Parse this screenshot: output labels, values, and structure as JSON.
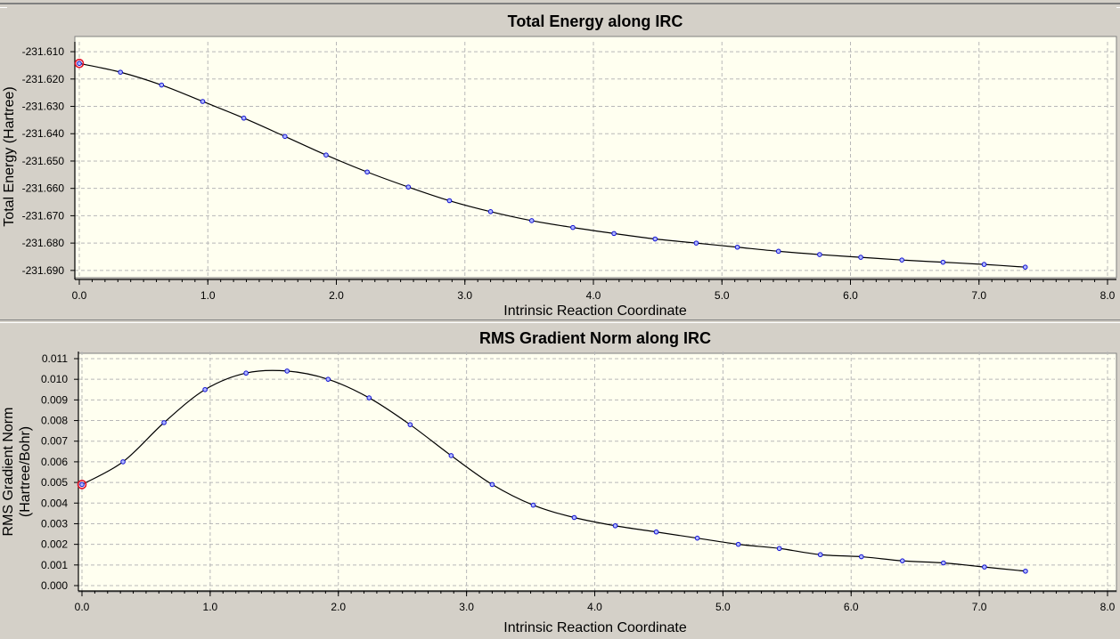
{
  "chart_data": [
    {
      "type": "line",
      "title": "Total Energy along IRC",
      "xlabel": "Intrinsic Reaction Coordinate",
      "ylabel": "Total Energy (Hartree)",
      "xlim": [
        0.0,
        8.0
      ],
      "ylim": [
        -231.692,
        -231.609
      ],
      "x_ticks": [
        "0.0",
        "1.0",
        "2.0",
        "3.0",
        "4.0",
        "5.0",
        "6.0",
        "7.0",
        "8.0"
      ],
      "y_ticks": [
        "-231.610",
        "-231.620",
        "-231.630",
        "-231.640",
        "-231.650",
        "-231.660",
        "-231.670",
        "-231.680",
        "-231.690"
      ],
      "grid": true,
      "selected_point_index": 0,
      "x": [
        0.0,
        0.32,
        0.64,
        0.96,
        1.28,
        1.6,
        1.92,
        2.24,
        2.56,
        2.88,
        3.2,
        3.52,
        3.84,
        4.16,
        4.48,
        4.8,
        5.12,
        5.44,
        5.76,
        6.08,
        6.4,
        6.72,
        7.04,
        7.36
      ],
      "series": [
        {
          "values": [
            -231.6143,
            -231.6175,
            -231.6222,
            -231.6282,
            -231.6343,
            -231.641,
            -231.6478,
            -231.654,
            -231.6595,
            -231.6645,
            -231.6685,
            -231.6718,
            -231.6743,
            -231.6765,
            -231.6785,
            -231.68,
            -231.6815,
            -231.683,
            -231.6842,
            -231.6852,
            -231.6862,
            -231.687,
            -231.6878,
            -231.6888
          ]
        }
      ]
    },
    {
      "type": "line",
      "title": "RMS Gradient Norm along IRC",
      "xlabel": "Intrinsic Reaction Coordinate",
      "ylabel": [
        "RMS Gradient Norm",
        "(Hartree/Bohr)"
      ],
      "xlim": [
        0.0,
        8.0
      ],
      "ylim": [
        0.0,
        0.011
      ],
      "x_ticks": [
        "0.0",
        "1.0",
        "2.0",
        "3.0",
        "4.0",
        "5.0",
        "6.0",
        "7.0",
        "8.0"
      ],
      "y_ticks": [
        "0.000",
        "0.001",
        "0.002",
        "0.003",
        "0.004",
        "0.005",
        "0.006",
        "0.007",
        "0.008",
        "0.009",
        "0.010",
        "0.011"
      ],
      "grid": true,
      "selected_point_index": 0,
      "x": [
        0.0,
        0.32,
        0.64,
        0.96,
        1.28,
        1.6,
        1.92,
        2.24,
        2.56,
        2.88,
        3.2,
        3.52,
        3.84,
        4.16,
        4.48,
        4.8,
        5.12,
        5.44,
        5.76,
        6.08,
        6.4,
        6.72,
        7.04,
        7.36
      ],
      "series": [
        {
          "values": [
            0.0049,
            0.006,
            0.0079,
            0.0095,
            0.0103,
            0.0104,
            0.01,
            0.0091,
            0.0078,
            0.0063,
            0.0049,
            0.0039,
            0.0033,
            0.0029,
            0.0026,
            0.0023,
            0.002,
            0.0018,
            0.0015,
            0.0014,
            0.0012,
            0.0011,
            0.0009,
            0.0007
          ]
        }
      ]
    }
  ],
  "style": {
    "plot_background": "#fffff0",
    "frame_background": "#d4d0c8",
    "line_color": "#000000",
    "point_fill": "#b0b8ff",
    "point_stroke": "#1010d0",
    "selected_point_color": "#e0102a",
    "grid_color": "#b8b8b8"
  }
}
